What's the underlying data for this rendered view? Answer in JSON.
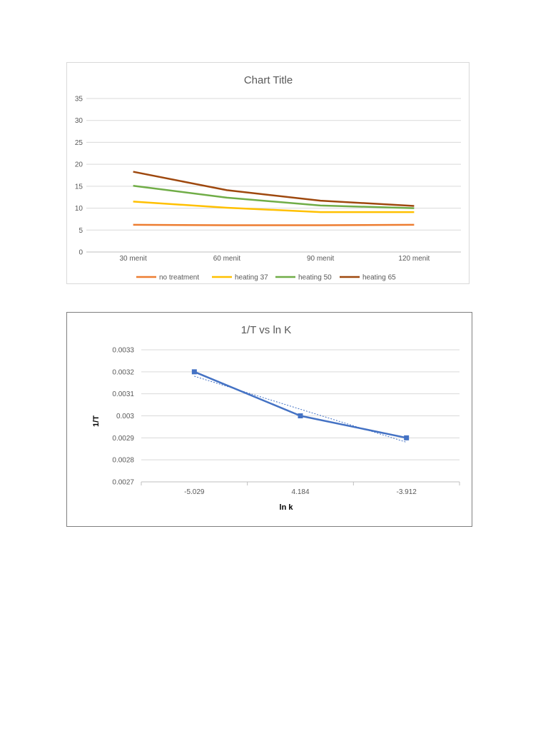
{
  "chart_data": [
    {
      "type": "line",
      "title": "Chart Title",
      "categories": [
        "30 menit",
        "60 menit",
        "90 menit",
        "120 menit"
      ],
      "ylim": [
        0,
        35
      ],
      "yticks": [
        "0",
        "5",
        "10",
        "15",
        "20",
        "25",
        "30",
        "35"
      ],
      "grid": true,
      "legend_position": "bottom",
      "series": [
        {
          "name": "no treatment",
          "color": "#ed7d31",
          "values": [
            6.2,
            6.1,
            6.1,
            6.2
          ]
        },
        {
          "name": "heating 37",
          "color": "#ffc000",
          "values": [
            11.5,
            10.1,
            9.1,
            9.1
          ]
        },
        {
          "name": "heating 50",
          "color": "#70ad47",
          "values": [
            15.1,
            12.4,
            10.6,
            10.0
          ]
        },
        {
          "name": "heating 65",
          "color": "#9e480e",
          "values": [
            18.3,
            14.1,
            11.7,
            10.5
          ]
        }
      ]
    },
    {
      "type": "line",
      "title": "1/T vs ln K",
      "xlabel": "ln k",
      "ylabel": "1/T",
      "categories": [
        "-5.029",
        "4.184",
        "-3.912"
      ],
      "ylim": [
        0.0027,
        0.0033
      ],
      "yticks": [
        "0.0027",
        "0.0028",
        "0.0029",
        "0.003",
        "0.0031",
        "0.0032",
        "0.0033"
      ],
      "grid": true,
      "trendline": {
        "type": "linear",
        "style": "dotted",
        "color": "#4472c4",
        "values": [
          0.00318,
          0.00303,
          0.00288
        ]
      },
      "series": [
        {
          "color": "#4472c4",
          "marker": "square",
          "values": [
            0.0032,
            0.003,
            0.0029
          ]
        }
      ]
    }
  ]
}
